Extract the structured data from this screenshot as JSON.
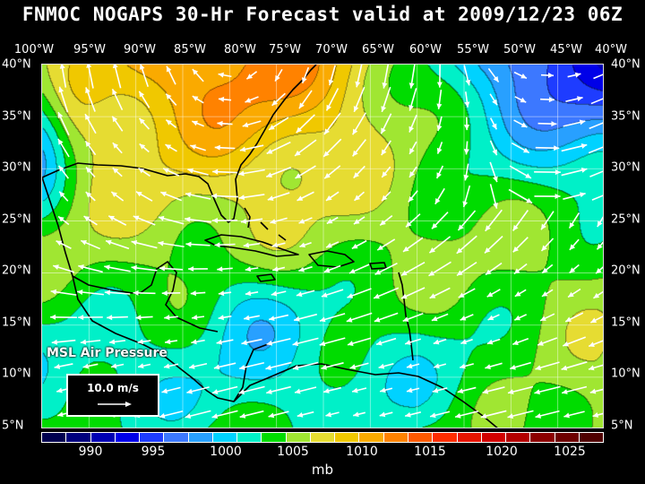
{
  "title": "FNMOC NOGAPS 30-Hr Forecast valid at 2009/12/23 06Z",
  "longitude_labels": [
    "100°W",
    "95°W",
    "90°W",
    "85°W",
    "80°W",
    "75°W",
    "70°W",
    "65°W",
    "60°W",
    "55°W",
    "50°W",
    "45°W",
    "40°W"
  ],
  "latitude_labels": [
    "40°N",
    "35°N",
    "30°N",
    "25°N",
    "20°N",
    "15°N",
    "10°N",
    "5°N"
  ],
  "layer_label": "MSL Air Pressure",
  "reference_vector_label": "10.0 m/s",
  "colorbar": {
    "units": "mb",
    "tick_labels": [
      "990",
      "995",
      "1000",
      "1005",
      "1010",
      "1015",
      "1020",
      "1025"
    ],
    "colors": [
      "#000050",
      "#00007e",
      "#0000b4",
      "#0000e8",
      "#1e3cff",
      "#3c78ff",
      "#28a0ff",
      "#00d2ff",
      "#00f0c8",
      "#00dc00",
      "#a0e632",
      "#e6dc32",
      "#f0c800",
      "#faaa00",
      "#ff8200",
      "#ff5a00",
      "#ff2d00",
      "#e61400",
      "#d20000",
      "#b40000",
      "#8c0000",
      "#6e0000",
      "#500000"
    ]
  },
  "colors": {
    "background": "#000000",
    "text": "#ffffff",
    "vectors": "#ffffff",
    "coastline": "#000000"
  }
}
